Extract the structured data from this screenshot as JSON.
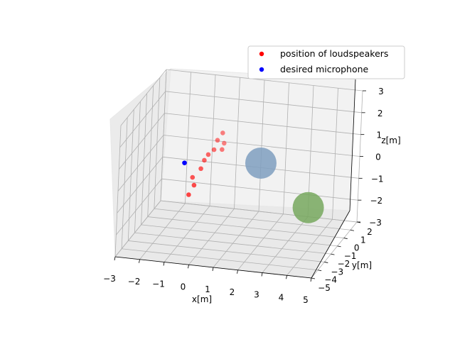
{
  "chart_data": {
    "type": "scatter",
    "projection": "3d",
    "xlabel": "x[m]",
    "ylabel": "y[m]",
    "zlabel": "z[m]",
    "xlim": [
      -3,
      5
    ],
    "ylim": [
      -5,
      2
    ],
    "zlim": [
      -3,
      3
    ],
    "xticks": [
      "−3",
      "−2",
      "−1",
      "0",
      "1",
      "2",
      "3",
      "4",
      "5"
    ],
    "yticks": [
      "−5",
      "−4",
      "−3",
      "−2",
      "−1",
      "0",
      "1",
      "2"
    ],
    "zticks": [
      "−3",
      "−2",
      "−1",
      "0",
      "1",
      "2",
      "3"
    ],
    "grid": true,
    "legend_position": "upper-right",
    "series": [
      {
        "name": "position of loudspeakers",
        "color": "#ff0000",
        "points": [
          {
            "x": -1.0,
            "y": -1.5,
            "z": -1.2
          },
          {
            "x": -0.9,
            "y": -1.1,
            "z": -0.9
          },
          {
            "x": -1.1,
            "y": -0.6,
            "z": -0.75
          },
          {
            "x": -0.8,
            "y": -0.5,
            "z": -0.35
          },
          {
            "x": -0.8,
            "y": 0.0,
            "z": -0.15
          },
          {
            "x": -0.7,
            "y": 0.2,
            "z": 0.05
          },
          {
            "x": -0.6,
            "y": 0.7,
            "z": 0.1
          },
          {
            "x": -0.6,
            "y": 1.2,
            "z": 0.35
          },
          {
            "x": -0.5,
            "y": 1.6,
            "z": 0.55
          },
          {
            "x": -0.4,
            "y": 1.2,
            "z": -0.05
          },
          {
            "x": -0.45,
            "y": 1.7,
            "z": 0.05
          }
        ]
      },
      {
        "name": "desired microphone",
        "color": "#0000ff",
        "points": [
          {
            "x": -1.4,
            "y": -0.8,
            "z": -0.05
          }
        ]
      }
    ],
    "spheres": [
      {
        "color": "#7f9fbf",
        "x": 1.5,
        "y": 0.0,
        "z": 0.0
      },
      {
        "color": "#77a85e",
        "x": 4.0,
        "y": -2.0,
        "z": -1.0
      }
    ]
  }
}
